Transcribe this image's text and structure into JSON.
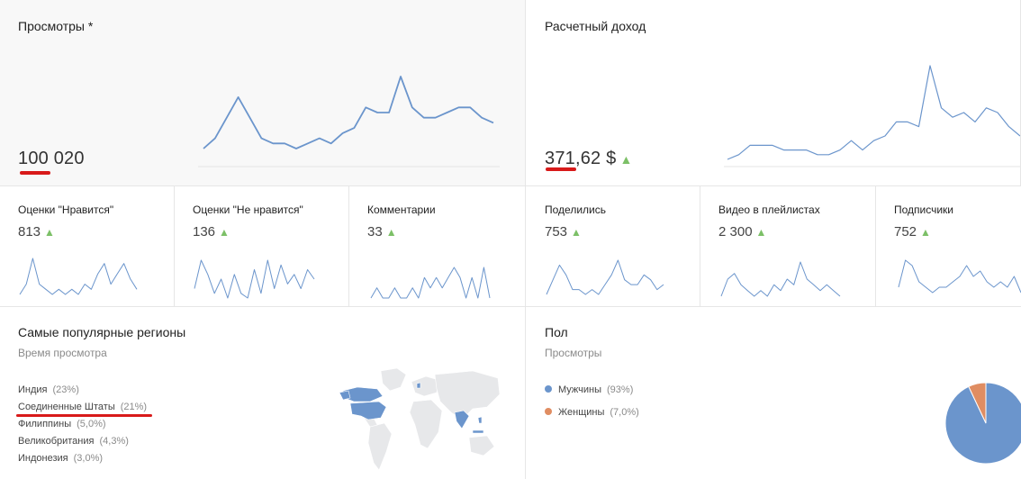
{
  "top": {
    "views": {
      "title": "Просмотры *",
      "value": "100 020"
    },
    "revenue": {
      "title": "Расчетный доход",
      "value": "371,62 $"
    }
  },
  "metrics": [
    {
      "label": "Оценки \"Нравится\"",
      "value": "813"
    },
    {
      "label": "Оценки \"Не нравится\"",
      "value": "136"
    },
    {
      "label": "Комментарии",
      "value": "33"
    },
    {
      "label": "Поделились",
      "value": "753"
    },
    {
      "label": "Видео в плейлистах",
      "value": "2 300"
    },
    {
      "label": "Подписчики",
      "value": "752"
    }
  ],
  "regions": {
    "title": "Самые популярные регионы",
    "subtitle": "Время просмотра",
    "items": [
      {
        "name": "Индия",
        "pct": "(23%)"
      },
      {
        "name": "Соединенные Штаты",
        "pct": "(21%)"
      },
      {
        "name": "Филиппины",
        "pct": "(5,0%)"
      },
      {
        "name": "Великобритания",
        "pct": "(4,3%)"
      },
      {
        "name": "Индонезия",
        "pct": "(3,0%)"
      }
    ]
  },
  "gender": {
    "title": "Пол",
    "subtitle": "Просмотры",
    "items": [
      {
        "name": "Мужчины",
        "pct": "(93%)",
        "color": "#6b95cc"
      },
      {
        "name": "Женщины",
        "pct": "(7,0%)",
        "color": "#e08d62"
      }
    ]
  },
  "colors": {
    "line": "#6b95cc",
    "up_arrow": "#7cc067",
    "annotation": "#d81a1a"
  },
  "chart_data": [
    {
      "type": "line",
      "name": "views-trend",
      "values": [
        4,
        6,
        10,
        14,
        10,
        6,
        5,
        5,
        4,
        5,
        6,
        5,
        7,
        8,
        12,
        11,
        11,
        18,
        12,
        10,
        10,
        11,
        12,
        12,
        10,
        9
      ]
    },
    {
      "type": "line",
      "name": "revenue-trend",
      "values": [
        2,
        3,
        5,
        5,
        5,
        4,
        4,
        4,
        3,
        3,
        4,
        6,
        4,
        6,
        7,
        10,
        10,
        9,
        22,
        13,
        11,
        12,
        10,
        13,
        12,
        9,
        7
      ]
    },
    {
      "type": "line",
      "name": "likes-trend",
      "values": [
        2,
        4,
        9,
        4,
        3,
        2,
        3,
        2,
        3,
        2,
        4,
        3,
        6,
        8,
        4,
        6,
        8,
        5,
        3
      ]
    },
    {
      "type": "line",
      "name": "dislikes-trend",
      "values": [
        3,
        9,
        6,
        2,
        5,
        1,
        6,
        2,
        1,
        7,
        2,
        9,
        3,
        8,
        4,
        6,
        3,
        7,
        5
      ]
    },
    {
      "type": "line",
      "name": "comments-trend",
      "values": [
        1,
        2,
        1,
        1,
        2,
        1,
        1,
        2,
        1,
        3,
        2,
        3,
        2,
        3,
        4,
        3,
        1,
        3,
        1,
        4,
        1
      ]
    },
    {
      "type": "line",
      "name": "shares-trend",
      "values": [
        2,
        5,
        8,
        6,
        3,
        3,
        2,
        3,
        2,
        4,
        6,
        9,
        5,
        4,
        4,
        6,
        5,
        3,
        4
      ]
    },
    {
      "type": "line",
      "name": "playlists-trend",
      "values": [
        1,
        4,
        5,
        3,
        2,
        1,
        2,
        1,
        3,
        2,
        4,
        3,
        7,
        4,
        3,
        2,
        3,
        2,
        1
      ]
    },
    {
      "type": "line",
      "name": "subscribers-trend",
      "values": [
        2,
        7,
        6,
        3,
        2,
        1,
        2,
        2,
        3,
        4,
        6,
        4,
        5,
        3,
        2,
        3,
        2,
        4,
        1
      ]
    },
    {
      "type": "pie",
      "name": "gender-pie",
      "slices": [
        {
          "label": "Мужчины",
          "value": 93
        },
        {
          "label": "Женщины",
          "value": 7
        }
      ]
    }
  ]
}
